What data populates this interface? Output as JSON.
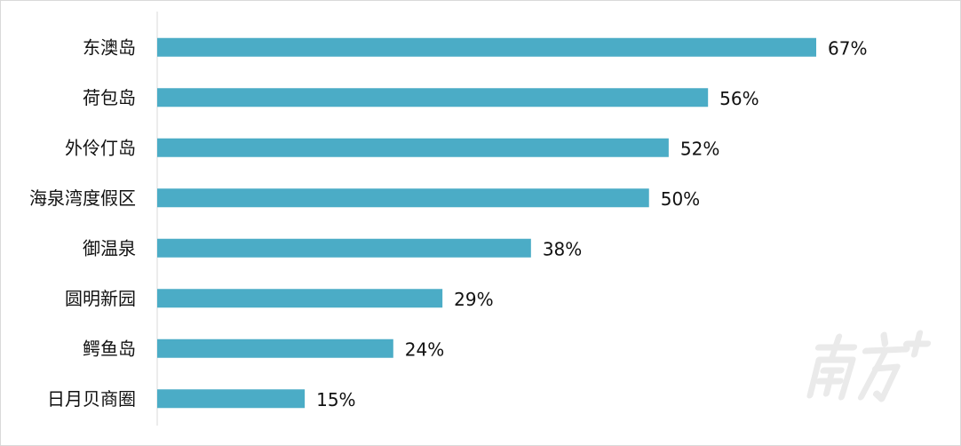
{
  "chart_data": {
    "type": "bar",
    "orientation": "horizontal",
    "categories": [
      "东澳岛",
      "荷包岛",
      "外伶仃岛",
      "海泉湾度假区",
      "御温泉",
      "圆明新园",
      "鳄鱼岛",
      "日月贝商圈"
    ],
    "values": [
      67,
      56,
      52,
      50,
      38,
      29,
      24,
      15
    ],
    "value_labels": [
      "67%",
      "56%",
      "52%",
      "50%",
      "38%",
      "29%",
      "24%",
      "15%"
    ],
    "title": "",
    "xlabel": "",
    "ylabel": "",
    "xlim": [
      0,
      75
    ],
    "grid": false,
    "legend": "none",
    "bar_color": "#4bacc6"
  },
  "watermark": {
    "logo_text": "南方+",
    "color": "#e6e6e6"
  }
}
